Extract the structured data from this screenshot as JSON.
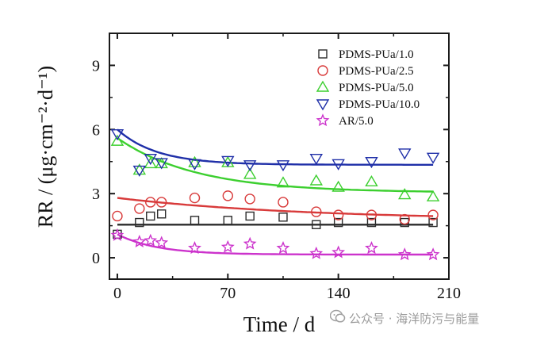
{
  "chart_data": {
    "type": "scatter",
    "title": "",
    "xlabel": "Time / d",
    "ylabel": "RR / (μg·cm⁻²·d⁻¹)",
    "xlim": [
      -5,
      210
    ],
    "ylim": [
      -1,
      10.5
    ],
    "x_ticks": [
      0,
      70,
      140,
      210
    ],
    "y_ticks": [
      0,
      3,
      6,
      9
    ],
    "legend_position": "top-right",
    "grid": false,
    "series": [
      {
        "name": "PDMS-PUa/1.0",
        "marker": "square",
        "color": "#2b2b2b",
        "points": [
          [
            0,
            1.1
          ],
          [
            14,
            1.65
          ],
          [
            21,
            1.95
          ],
          [
            28,
            2.05
          ],
          [
            49,
            1.75
          ],
          [
            70,
            1.75
          ],
          [
            84,
            1.95
          ],
          [
            105,
            1.9
          ],
          [
            126,
            1.55
          ],
          [
            140,
            1.65
          ],
          [
            161,
            1.65
          ],
          [
            182,
            1.65
          ],
          [
            200,
            1.65
          ]
        ],
        "fit": {
          "from": 0,
          "to": 200,
          "y0": 1.55,
          "yinf": 1.55,
          "tau": 50
        }
      },
      {
        "name": "PDMS-PUa/2.5",
        "marker": "circle",
        "color": "#d83a3a",
        "points": [
          [
            0,
            1.95
          ],
          [
            14,
            2.3
          ],
          [
            21,
            2.6
          ],
          [
            28,
            2.6
          ],
          [
            49,
            2.8
          ],
          [
            70,
            2.9
          ],
          [
            84,
            2.75
          ],
          [
            105,
            2.6
          ],
          [
            126,
            2.15
          ],
          [
            140,
            2.0
          ],
          [
            161,
            2.0
          ],
          [
            182,
            1.8
          ],
          [
            200,
            2.0
          ]
        ],
        "fit": {
          "from": 0,
          "to": 200,
          "y0": 2.8,
          "yinf": 1.75,
          "tau": 120
        }
      },
      {
        "name": "PDMS-PUa/5.0",
        "marker": "triangle-up",
        "color": "#3ccf2f",
        "points": [
          [
            0,
            5.45
          ],
          [
            14,
            4.1
          ],
          [
            21,
            4.4
          ],
          [
            28,
            4.4
          ],
          [
            49,
            4.45
          ],
          [
            70,
            4.45
          ],
          [
            84,
            3.9
          ],
          [
            105,
            3.5
          ],
          [
            126,
            3.6
          ],
          [
            140,
            3.3
          ],
          [
            161,
            3.55
          ],
          [
            182,
            2.95
          ],
          [
            200,
            2.85
          ]
        ],
        "fit": {
          "from": 0,
          "to": 200,
          "y0": 5.6,
          "yinf": 3.05,
          "tau": 50
        }
      },
      {
        "name": "PDMS-PUa/10.0",
        "marker": "triangle-down",
        "color": "#1f2fa8",
        "points": [
          [
            0,
            5.8
          ],
          [
            14,
            4.1
          ],
          [
            21,
            4.65
          ],
          [
            28,
            4.45
          ],
          [
            49,
            4.4
          ],
          [
            70,
            4.55
          ],
          [
            84,
            4.35
          ],
          [
            105,
            4.35
          ],
          [
            126,
            4.65
          ],
          [
            140,
            4.4
          ],
          [
            161,
            4.5
          ],
          [
            182,
            4.9
          ],
          [
            200,
            4.7
          ]
        ],
        "fit": {
          "from": 0,
          "to": 200,
          "y0": 6.0,
          "yinf": 4.35,
          "tau": 25
        }
      },
      {
        "name": "AR/5.0",
        "marker": "star",
        "color": "#cc33cc",
        "points": [
          [
            0,
            1.05
          ],
          [
            14,
            0.75
          ],
          [
            21,
            0.8
          ],
          [
            28,
            0.7
          ],
          [
            49,
            0.45
          ],
          [
            70,
            0.5
          ],
          [
            84,
            0.65
          ],
          [
            105,
            0.45
          ],
          [
            126,
            0.2
          ],
          [
            140,
            0.25
          ],
          [
            161,
            0.45
          ],
          [
            182,
            0.15
          ],
          [
            200,
            0.15
          ]
        ],
        "fit": {
          "from": 0,
          "to": 200,
          "y0": 1.1,
          "yinf": 0.15,
          "tau": 25
        }
      }
    ]
  },
  "watermark": {
    "text": "公众号 · 海洋防污与能量",
    "icon": "wechat-official-account-icon"
  }
}
